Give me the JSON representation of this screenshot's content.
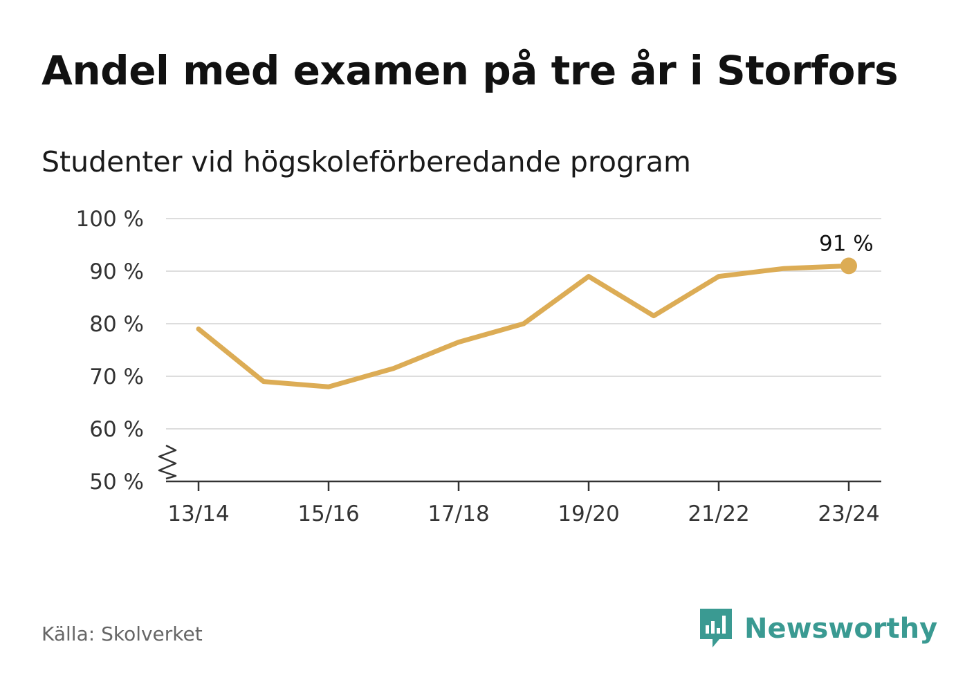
{
  "header": {
    "title": "Andel med examen på tre år i Storfors",
    "subtitle": "Studenter vid högskoleförberedande program"
  },
  "chart_data": {
    "type": "line",
    "x": [
      "13/14",
      "14/15",
      "15/16",
      "16/17",
      "17/18",
      "18/19",
      "19/20",
      "20/21",
      "21/22",
      "22/23",
      "23/24"
    ],
    "x_tick_labels": [
      "13/14",
      "15/16",
      "17/18",
      "19/20",
      "21/22",
      "23/24"
    ],
    "series": [
      {
        "values": [
          79,
          69,
          68,
          71.5,
          76.5,
          80,
          89,
          81.5,
          89,
          90.5,
          91
        ],
        "color": "#dcac55"
      }
    ],
    "y_tick_labels": [
      "50 %",
      "60 %",
      "70 %",
      "80 %",
      "90 %",
      "100 %"
    ],
    "y_ticks": [
      50,
      60,
      70,
      80,
      90,
      100
    ],
    "ylim": [
      50,
      100
    ],
    "axis_break": true,
    "grid": true,
    "end_label": "91 %",
    "line_color": "#dcac55",
    "grid_color": "#dddddd",
    "axis_color": "#333333"
  },
  "footer": {
    "source": "Källa: Skolverket",
    "brand": "Newsworthy",
    "brand_color": "#3a9a92"
  }
}
